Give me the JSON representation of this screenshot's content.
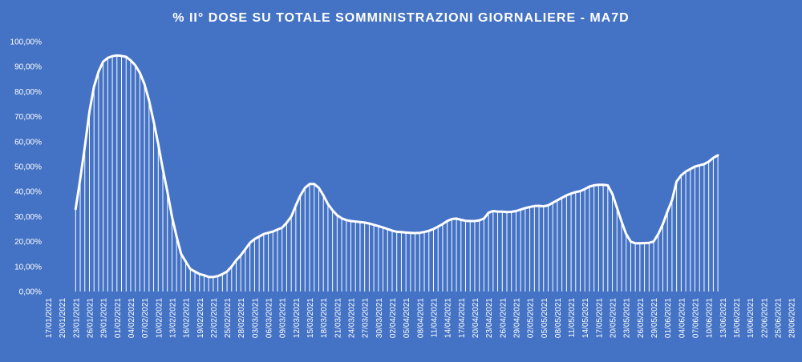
{
  "chart_data": {
    "type": "line",
    "title": "% II° DOSE SU TOTALE SOMMINISTRAZIONI  GIORNALIERE  - MA7D",
    "xlabel": "",
    "ylabel": "",
    "ylim": [
      0,
      100
    ],
    "y_ticks": [
      "0,00%",
      "10,00%",
      "20,00%",
      "30,00%",
      "40,00%",
      "50,00%",
      "60,00%",
      "70,00%",
      "80,00%",
      "90,00%",
      "100,00%"
    ],
    "x_tick_labels": [
      "17/01/2021",
      "20/01/2021",
      "23/01/2021",
      "26/01/2021",
      "29/01/2021",
      "01/02/2021",
      "04/02/2021",
      "07/02/2021",
      "10/02/2021",
      "13/02/2021",
      "16/02/2021",
      "19/02/2021",
      "22/02/2021",
      "25/02/2021",
      "28/02/2021",
      "03/03/2021",
      "06/03/2021",
      "09/03/2021",
      "12/03/2021",
      "15/03/2021",
      "18/03/2021",
      "21/03/2021",
      "24/03/2021",
      "27/03/2021",
      "30/03/2021",
      "02/04/2021",
      "05/04/2021",
      "08/04/2021",
      "11/04/2021",
      "14/04/2021",
      "17/04/2021",
      "20/04/2021",
      "23/04/2021",
      "26/04/2021",
      "29/04/2021",
      "02/05/2021",
      "05/05/2021",
      "08/05/2021",
      "11/05/2021",
      "14/05/2021",
      "17/05/2021",
      "20/05/2021",
      "23/05/2021",
      "26/05/2021",
      "29/05/2021",
      "01/06/2021",
      "04/06/2021",
      "07/06/2021",
      "10/06/2021",
      "13/06/2021",
      "16/06/2021",
      "19/06/2021",
      "22/06/2021",
      "25/06/2021",
      "28/06/2021"
    ],
    "series": [
      {
        "start_date": "23/01/2021",
        "values": [
          33,
          45,
          58,
          72,
          82,
          88,
          92,
          93.5,
          94.2,
          94.5,
          94.3,
          93.9,
          92.5,
          90.5,
          87.5,
          83,
          76.5,
          68,
          59,
          49,
          40,
          30,
          22,
          15,
          12,
          9,
          8,
          7,
          6.5,
          5.8,
          5.8,
          6.2,
          7,
          8,
          10,
          12.5,
          14.5,
          17,
          19.5,
          21,
          22,
          23,
          23.5,
          24,
          24.8,
          25.5,
          27.5,
          30,
          34.5,
          38.5,
          41.5,
          43,
          43,
          41.5,
          38.5,
          35,
          32.5,
          30.5,
          29.3,
          28.6,
          28.2,
          28,
          27.8,
          27.6,
          27.2,
          26.7,
          26.2,
          25.6,
          25,
          24.4,
          23.9,
          23.8,
          23.6,
          23.5,
          23.4,
          23.5,
          23.8,
          24.3,
          25,
          26,
          27,
          28.2,
          29,
          29.2,
          28.7,
          28.3,
          28.2,
          28.2,
          28.5,
          29.2,
          31.5,
          32.2,
          32,
          32,
          31.8,
          31.9,
          32.2,
          32.8,
          33.4,
          33.8,
          34.2,
          34.3,
          34.1,
          34.5,
          35.5,
          36.5,
          37.5,
          38.5,
          39.2,
          39.8,
          40.2,
          41,
          42,
          42.5,
          42.7,
          42.7,
          42.5,
          39,
          33.5,
          28,
          23,
          20,
          19.3,
          19.3,
          19.4,
          19.5,
          20,
          23,
          27,
          32,
          36.5,
          44,
          46.5,
          48,
          49,
          50,
          50.5,
          51,
          52,
          53.5,
          54.5
        ]
      }
    ]
  }
}
